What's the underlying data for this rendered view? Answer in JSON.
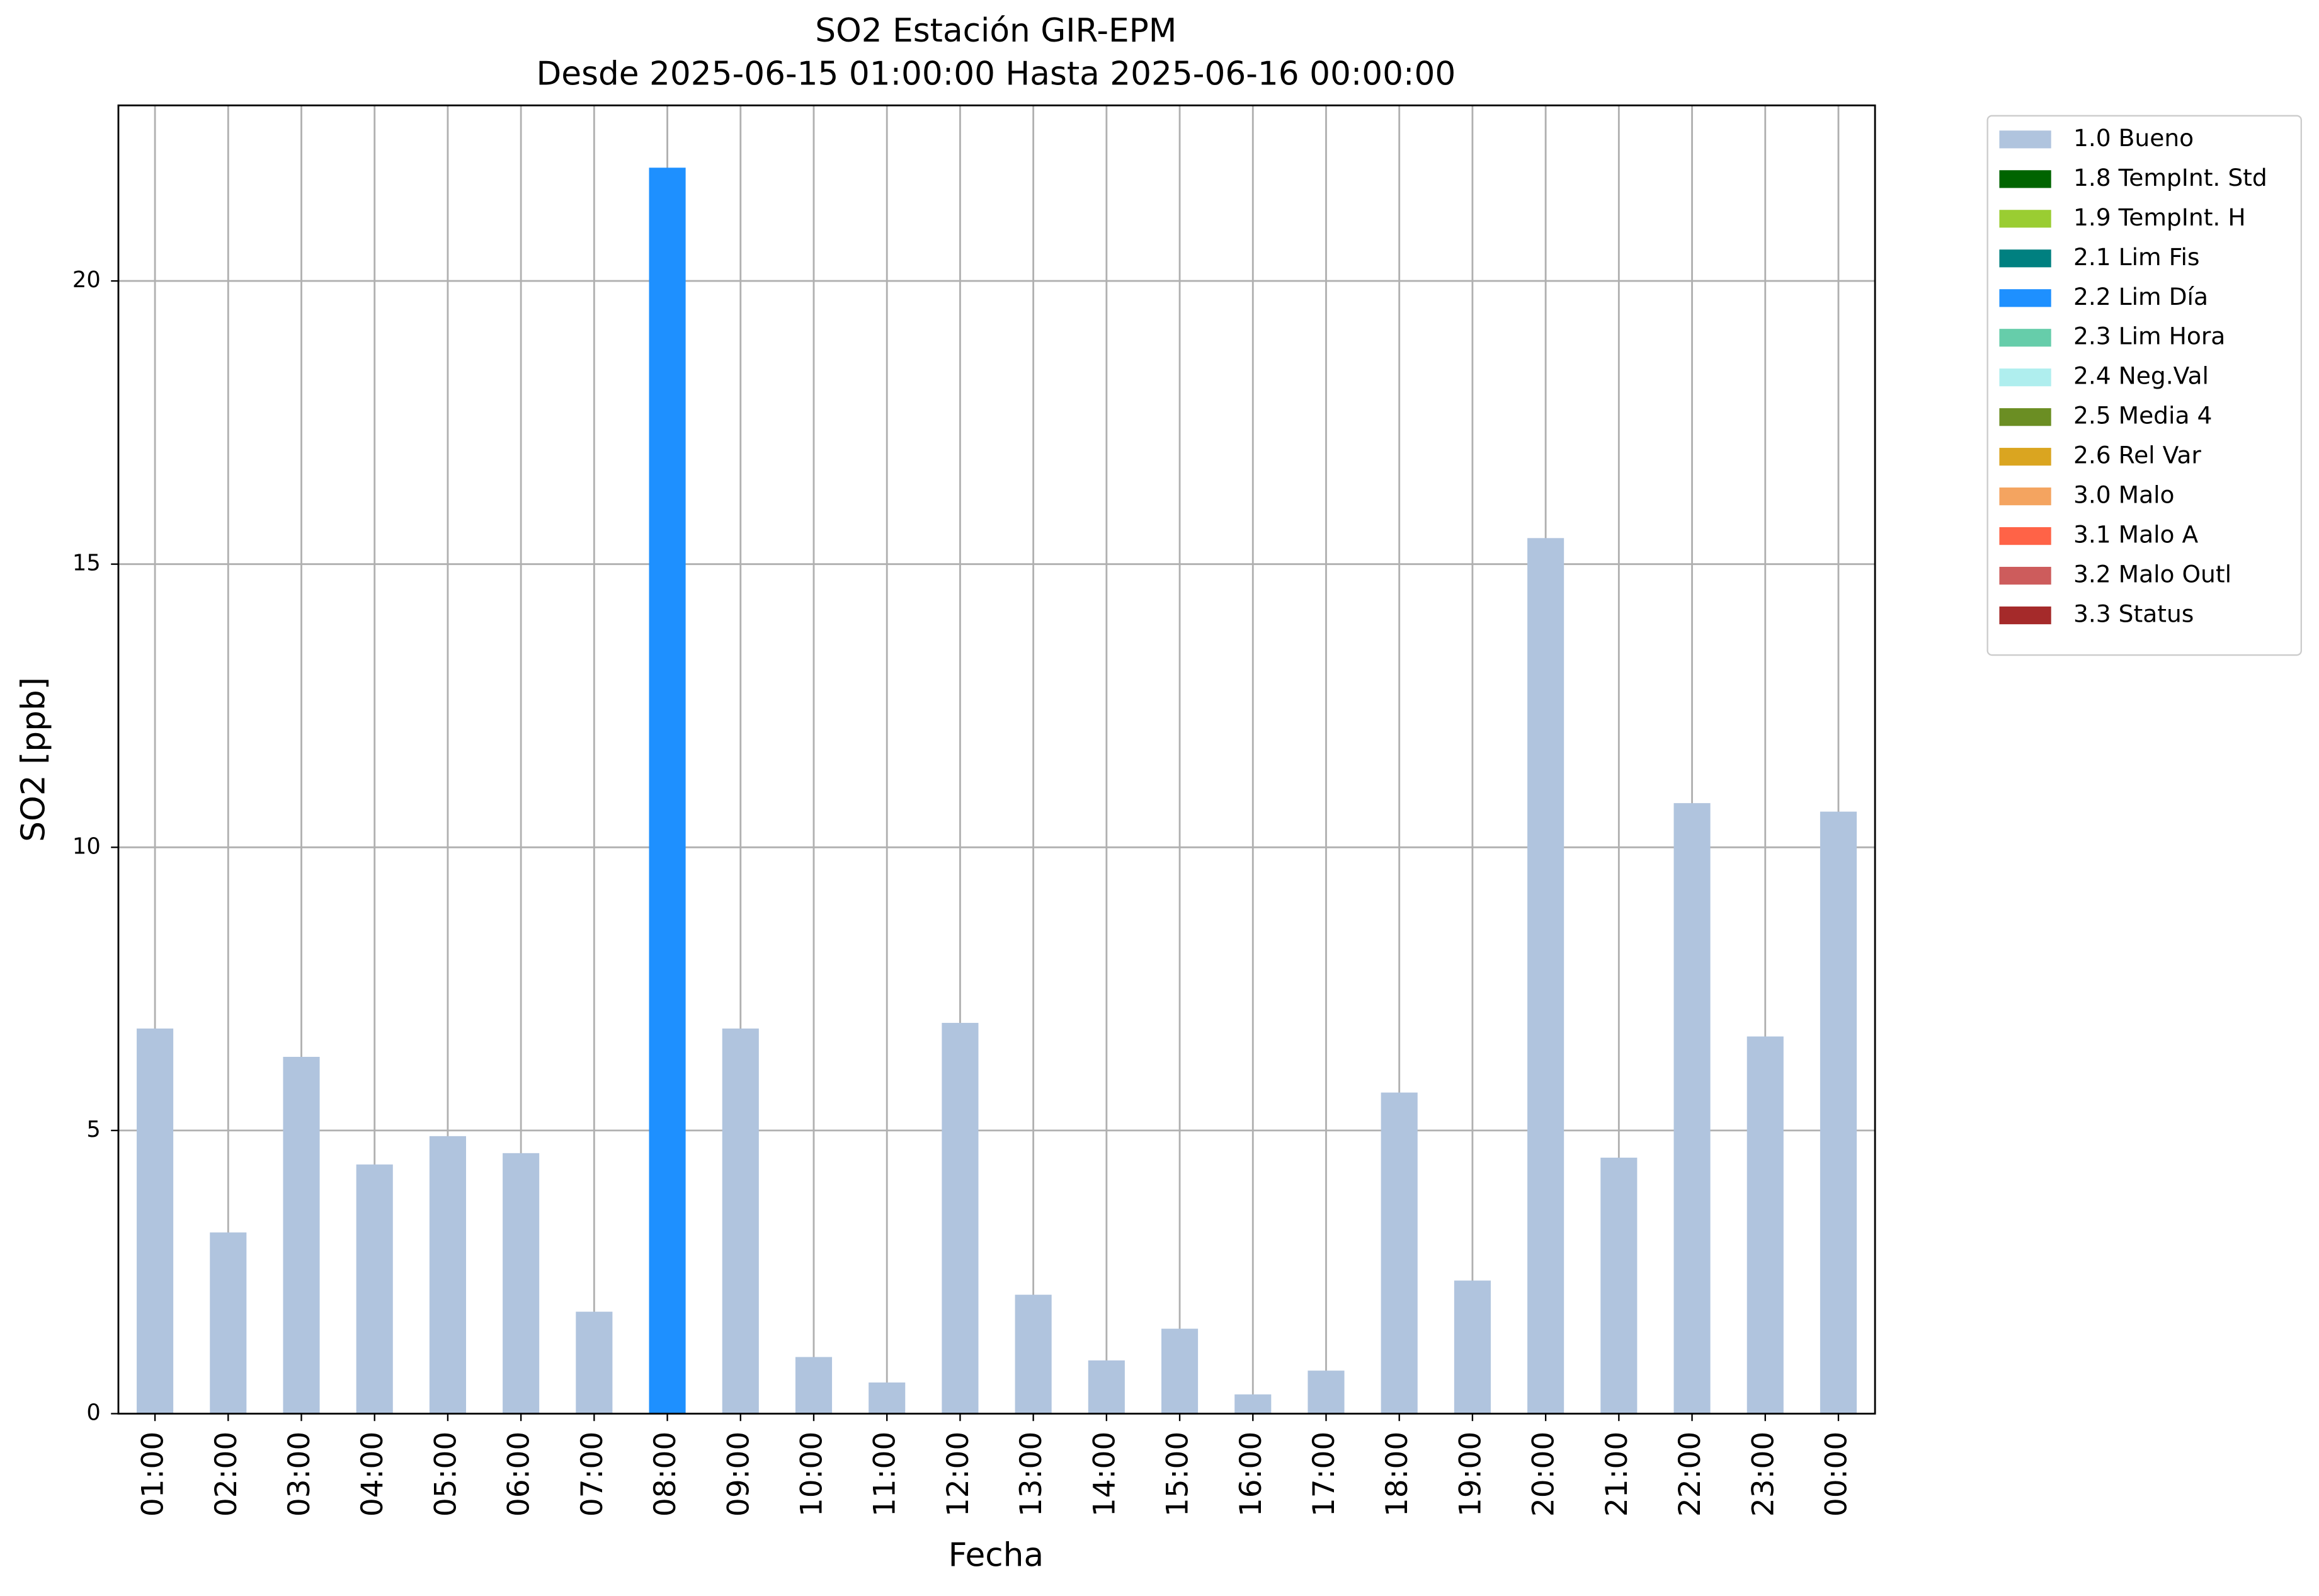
{
  "chart_data": {
    "type": "bar",
    "stacked": true,
    "title": "SO2 Estación GIR-EPM",
    "subtitle": "Desde 2025-06-15 01:00:00 Hasta 2025-06-16 00:00:00",
    "xlabel": "Fecha",
    "ylabel": "SO2 [ppb]",
    "categories": [
      "01:00",
      "02:00",
      "03:00",
      "04:00",
      "05:00",
      "06:00",
      "07:00",
      "08:00",
      "09:00",
      "10:00",
      "11:00",
      "12:00",
      "13:00",
      "14:00",
      "15:00",
      "16:00",
      "17:00",
      "18:00",
      "19:00",
      "20:00",
      "21:00",
      "22:00",
      "23:00",
      "00:00"
    ],
    "series": [
      {
        "name": "1.0 Bueno",
        "color": "#b0c4de",
        "values": [
          6.8,
          3.2,
          6.3,
          4.4,
          4.9,
          4.6,
          1.8,
          null,
          6.8,
          1.0,
          0.55,
          6.9,
          2.1,
          0.94,
          1.5,
          0.34,
          0.76,
          5.67,
          2.35,
          15.46,
          4.52,
          10.78,
          6.66,
          10.63
        ]
      },
      {
        "name": "1.8 TempInt. Std",
        "color": "#006400",
        "values": [
          null,
          null,
          null,
          null,
          null,
          null,
          null,
          null,
          null,
          null,
          null,
          null,
          null,
          null,
          null,
          null,
          null,
          null,
          null,
          null,
          null,
          null,
          null,
          null
        ]
      },
      {
        "name": "1.9 TempInt. H",
        "color": "#9acd32",
        "values": [
          null,
          null,
          null,
          null,
          null,
          null,
          null,
          null,
          null,
          null,
          null,
          null,
          null,
          null,
          null,
          null,
          null,
          null,
          null,
          null,
          null,
          null,
          null,
          null
        ]
      },
      {
        "name": "2.1 Lim Fis",
        "color": "#008080",
        "values": [
          null,
          null,
          null,
          null,
          null,
          null,
          null,
          null,
          null,
          null,
          null,
          null,
          null,
          null,
          null,
          null,
          null,
          null,
          null,
          null,
          null,
          null,
          null,
          null
        ]
      },
      {
        "name": "2.2 Lim Día",
        "color": "#1e90ff",
        "values": [
          null,
          null,
          null,
          null,
          null,
          null,
          null,
          22.0,
          null,
          null,
          null,
          null,
          null,
          null,
          null,
          null,
          null,
          null,
          null,
          null,
          null,
          null,
          null,
          null
        ]
      },
      {
        "name": "2.3 Lim Hora",
        "color": "#66cdaa",
        "values": [
          null,
          null,
          null,
          null,
          null,
          null,
          null,
          null,
          null,
          null,
          null,
          null,
          null,
          null,
          null,
          null,
          null,
          null,
          null,
          null,
          null,
          null,
          null,
          null
        ]
      },
      {
        "name": "2.4 Neg.Val",
        "color": "#afeeee",
        "values": [
          null,
          null,
          null,
          null,
          null,
          null,
          null,
          null,
          null,
          null,
          null,
          null,
          null,
          null,
          null,
          null,
          null,
          null,
          null,
          null,
          null,
          null,
          null,
          null
        ]
      },
      {
        "name": "2.5 Media 4",
        "color": "#6b8e23",
        "values": [
          null,
          null,
          null,
          null,
          null,
          null,
          null,
          null,
          null,
          null,
          null,
          null,
          null,
          null,
          null,
          null,
          null,
          null,
          null,
          null,
          null,
          null,
          null,
          null
        ]
      },
      {
        "name": "2.6 Rel Var",
        "color": "#daa520",
        "values": [
          null,
          null,
          null,
          null,
          null,
          null,
          null,
          null,
          null,
          null,
          null,
          null,
          null,
          null,
          null,
          null,
          null,
          null,
          null,
          null,
          null,
          null,
          null,
          null
        ]
      },
      {
        "name": "3.0 Malo",
        "color": "#f4a460",
        "values": [
          null,
          null,
          null,
          null,
          null,
          null,
          null,
          null,
          null,
          null,
          null,
          null,
          null,
          null,
          null,
          null,
          null,
          null,
          null,
          null,
          null,
          null,
          null,
          null
        ]
      },
      {
        "name": "3.1 Malo A",
        "color": "#ff6347",
        "values": [
          null,
          null,
          null,
          null,
          null,
          null,
          null,
          null,
          null,
          null,
          null,
          null,
          null,
          null,
          null,
          null,
          null,
          null,
          null,
          null,
          null,
          null,
          null,
          null
        ]
      },
      {
        "name": "3.2 Malo Outl",
        "color": "#cd5c5c",
        "values": [
          null,
          null,
          null,
          null,
          null,
          null,
          null,
          null,
          null,
          null,
          null,
          null,
          null,
          null,
          null,
          null,
          null,
          null,
          null,
          null,
          null,
          null,
          null,
          null
        ]
      },
      {
        "name": "3.3 Status",
        "color": "#a52a2a",
        "values": [
          null,
          null,
          null,
          null,
          null,
          null,
          null,
          null,
          null,
          null,
          null,
          null,
          null,
          null,
          null,
          null,
          null,
          null,
          null,
          null,
          null,
          null,
          null,
          null
        ]
      }
    ],
    "ylim": [
      0,
      23.1
    ],
    "yticks": [
      0,
      5,
      10,
      15,
      20
    ],
    "grid": true,
    "legend": "outside right"
  }
}
